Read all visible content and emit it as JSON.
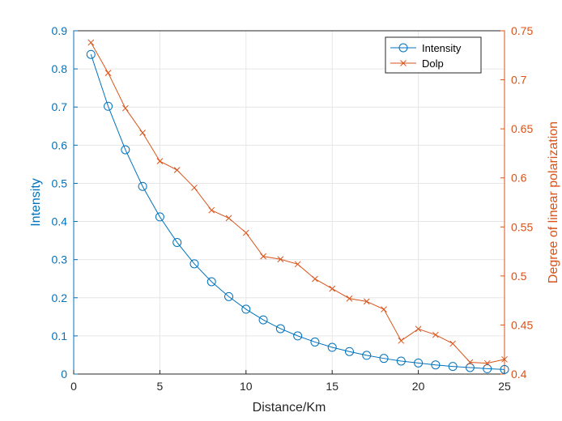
{
  "chart_data": {
    "type": "line",
    "title": "",
    "xlabel": "Distance/Km",
    "ylabel_left": "Intensity",
    "ylabel_right": "Degree of linear polarization",
    "xlim": [
      0,
      25
    ],
    "ylim_left": [
      0,
      0.9
    ],
    "ylim_right": [
      0.4,
      0.75
    ],
    "x_ticks": [
      0,
      5,
      10,
      15,
      20,
      25
    ],
    "y_left_ticks": [
      0,
      0.1,
      0.2,
      0.3,
      0.4,
      0.5,
      0.6,
      0.7,
      0.8,
      0.9
    ],
    "y_right_ticks": [
      0.4,
      0.45,
      0.5,
      0.55,
      0.6,
      0.65,
      0.7,
      0.75
    ],
    "grid": true,
    "legend_position": "top-right",
    "series": [
      {
        "name": "Intensity",
        "axis": "left",
        "marker": "circle",
        "color": "#0072BD",
        "x": [
          1,
          2,
          3,
          4,
          5,
          6,
          7,
          8,
          9,
          10,
          11,
          12,
          13,
          14,
          15,
          16,
          17,
          18,
          19,
          20,
          21,
          22,
          23,
          24,
          25
        ],
        "values": [
          0.838,
          0.702,
          0.588,
          0.492,
          0.412,
          0.345,
          0.289,
          0.242,
          0.203,
          0.17,
          0.142,
          0.119,
          0.1,
          0.084,
          0.07,
          0.059,
          0.049,
          0.041,
          0.034,
          0.029,
          0.024,
          0.02,
          0.017,
          0.014,
          0.012
        ]
      },
      {
        "name": "Dolp",
        "axis": "right",
        "marker": "x",
        "color": "#D95319",
        "x": [
          1,
          2,
          3,
          4,
          5,
          6,
          7,
          8,
          9,
          10,
          11,
          12,
          13,
          14,
          15,
          16,
          17,
          18,
          19,
          20,
          21,
          22,
          23,
          24,
          25
        ],
        "values": [
          0.738,
          0.707,
          0.671,
          0.646,
          0.617,
          0.608,
          0.59,
          0.567,
          0.559,
          0.544,
          0.52,
          0.517,
          0.512,
          0.497,
          0.487,
          0.477,
          0.474,
          0.466,
          0.434,
          0.446,
          0.44,
          0.431,
          0.412,
          0.411,
          0.415
        ]
      }
    ]
  }
}
